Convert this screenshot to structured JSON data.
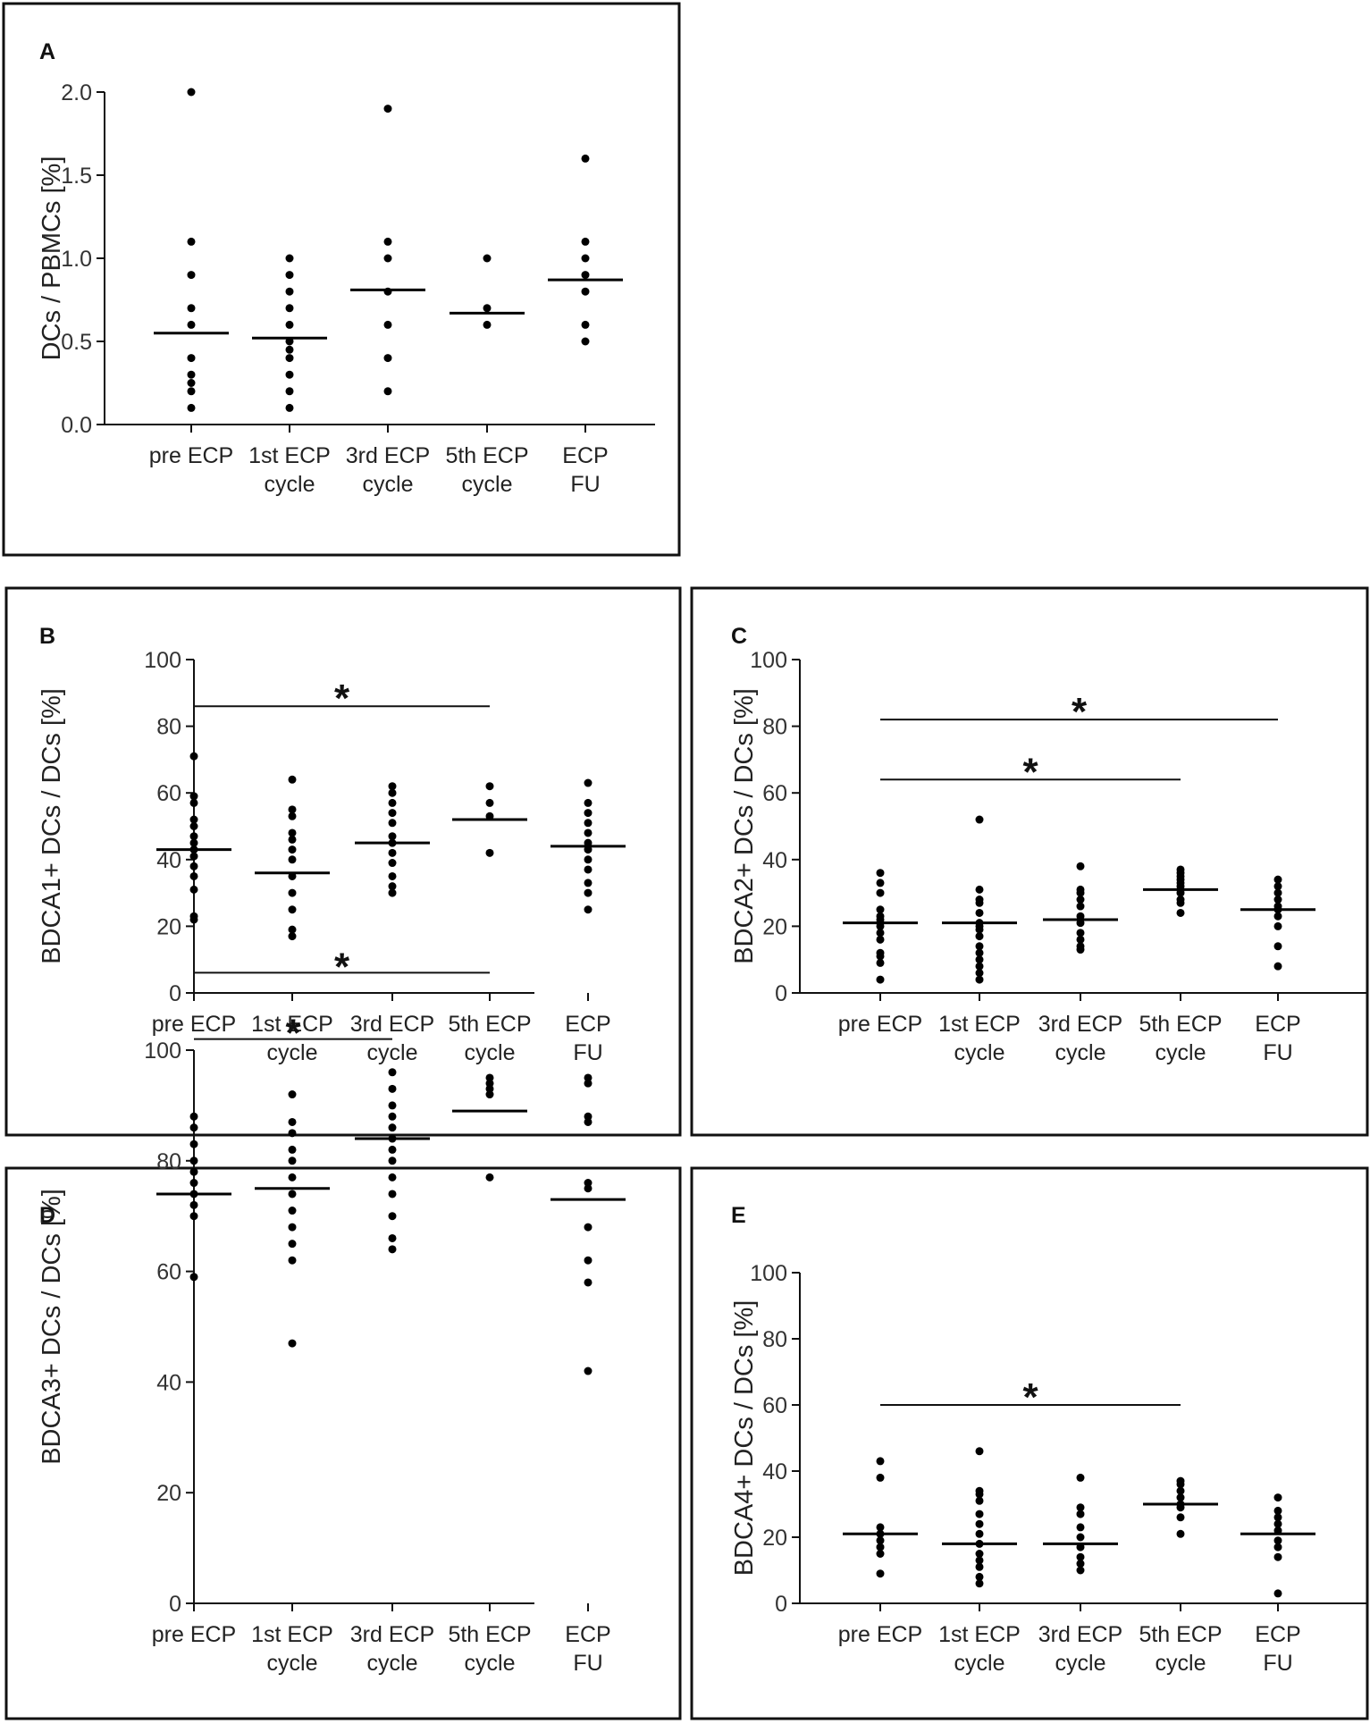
{
  "figure": {
    "categories": [
      [
        "pre ECP"
      ],
      [
        "1st ECP",
        "cycle"
      ],
      [
        "3rd ECP",
        "cycle"
      ],
      [
        "5th ECP",
        "cycle"
      ],
      [
        "ECP",
        "FU"
      ]
    ]
  },
  "chart_data": [
    {
      "panel": "A",
      "type": "scatter",
      "ylabel": "DCs / PBMCs [%]",
      "ylim": [
        0,
        2.0
      ],
      "yticks": [
        "0.0",
        "0.5",
        "1.0",
        "1.5",
        "2.0"
      ],
      "categories": [
        "pre ECP",
        "1st ECP cycle",
        "3rd ECP cycle",
        "5th ECP cycle",
        "ECP FU"
      ],
      "points": [
        [
          2.0,
          1.1,
          0.9,
          0.7,
          0.6,
          0.4,
          0.3,
          0.25,
          0.2,
          0.1
        ],
        [
          1.0,
          0.9,
          0.8,
          0.7,
          0.6,
          0.5,
          0.45,
          0.4,
          0.3,
          0.2,
          0.1
        ],
        [
          1.9,
          1.1,
          1.0,
          0.8,
          0.6,
          0.4,
          0.2
        ],
        [
          1.0,
          0.7,
          0.6
        ],
        [
          1.6,
          1.1,
          1.0,
          0.9,
          0.8,
          0.6,
          0.5
        ]
      ],
      "means": [
        0.55,
        0.52,
        0.81,
        0.67,
        0.87
      ],
      "significance": [],
      "significance_symbol": "*"
    },
    {
      "panel": "B",
      "type": "scatter",
      "ylabel": "BDCA1+ DCs / DCs [%]",
      "ylim": [
        0,
        100
      ],
      "yticks": [
        "0",
        "20",
        "40",
        "60",
        "80",
        "100"
      ],
      "categories": [
        "pre ECP",
        "1st ECP cycle",
        "3rd ECP cycle",
        "5th ECP cycle",
        "ECP FU"
      ],
      "points": [
        [
          71,
          59,
          57,
          52,
          50,
          47,
          45,
          43,
          41,
          38,
          35,
          31,
          23,
          22
        ],
        [
          64,
          55,
          53,
          48,
          46,
          43,
          40,
          35,
          30,
          25,
          19,
          17
        ],
        [
          62,
          60,
          57,
          54,
          51,
          47,
          45,
          42,
          39,
          35,
          32,
          30
        ],
        [
          62,
          57,
          53,
          42
        ],
        [
          63,
          57,
          54,
          51,
          48,
          45,
          43,
          40,
          37,
          33,
          30,
          25
        ]
      ],
      "means": [
        43,
        36,
        45,
        52,
        44
      ],
      "significance": [
        {
          "from": 0,
          "to": 3,
          "y": 86,
          "label": "*"
        }
      ],
      "significance_symbol": "*"
    },
    {
      "panel": "C",
      "type": "scatter",
      "ylabel": "BDCA2+ DCs / DCs [%]",
      "ylim": [
        0,
        100
      ],
      "yticks": [
        "0",
        "20",
        "40",
        "60",
        "80",
        "100"
      ],
      "categories": [
        "pre ECP",
        "1st ECP cycle",
        "3rd ECP cycle",
        "5th ECP cycle",
        "ECP FU"
      ],
      "points": [
        [
          36,
          33,
          30,
          25,
          23,
          22,
          21,
          20,
          18,
          16,
          12,
          11,
          9,
          4
        ],
        [
          52,
          31,
          28,
          27,
          24,
          21,
          20,
          19,
          17,
          14,
          12,
          10,
          8,
          6,
          4
        ],
        [
          38,
          31,
          30,
          28,
          26,
          23,
          21,
          18,
          16,
          14,
          13
        ],
        [
          37,
          36,
          35,
          34,
          33,
          32,
          31,
          30,
          28,
          27,
          24
        ],
        [
          34,
          32,
          30,
          28,
          26,
          25,
          23,
          20,
          14,
          8
        ]
      ],
      "means": [
        21,
        21,
        22,
        31,
        25
      ],
      "significance": [
        {
          "from": 0,
          "to": 4,
          "y": 82,
          "label": "*"
        },
        {
          "from": 0,
          "to": 3,
          "y": 64,
          "label": "*"
        }
      ],
      "significance_symbol": "*"
    },
    {
      "panel": "D",
      "type": "scatter",
      "ylabel": "BDCA3+ DCs / DCs [%]",
      "ylim": [
        0,
        100
      ],
      "yticks": [
        "0",
        "20",
        "40",
        "60",
        "80",
        "100"
      ],
      "categories": [
        "pre ECP",
        "1st ECP cycle",
        "3rd ECP cycle",
        "5th ECP cycle",
        "ECP FU"
      ],
      "points": [
        [
          88,
          86,
          83,
          80,
          78,
          76,
          74,
          72,
          70,
          59
        ],
        [
          92,
          87,
          85,
          82,
          80,
          77,
          74,
          71,
          68,
          65,
          62,
          47
        ],
        [
          96,
          93,
          90,
          88,
          86,
          84,
          82,
          80,
          77,
          74,
          70,
          66,
          64
        ],
        [
          95,
          94,
          93,
          92,
          77
        ],
        [
          95,
          94,
          88,
          87,
          76,
          75,
          68,
          62,
          58,
          42
        ]
      ],
      "means": [
        74,
        75,
        84,
        89,
        73
      ],
      "significance": [
        {
          "from": 0,
          "to": 3,
          "y": 114,
          "label": "*"
        },
        {
          "from": 0,
          "to": 2,
          "y": 102,
          "label": "*"
        }
      ],
      "significance_symbol": "*"
    },
    {
      "panel": "E",
      "type": "scatter",
      "ylabel": "BDCA4+ DCs / DCs [%]",
      "ylim": [
        0,
        100
      ],
      "yticks": [
        "0",
        "20",
        "40",
        "60",
        "80",
        "100"
      ],
      "categories": [
        "pre ECP",
        "1st ECP cycle",
        "3rd ECP cycle",
        "5th ECP cycle",
        "ECP FU"
      ],
      "points": [
        [
          43,
          38,
          23,
          21,
          19,
          17,
          15,
          9
        ],
        [
          46,
          34,
          33,
          31,
          27,
          24,
          21,
          18,
          15,
          13,
          11,
          8,
          6
        ],
        [
          38,
          29,
          27,
          23,
          20,
          17,
          14,
          12,
          10
        ],
        [
          37,
          36,
          34,
          32,
          30,
          29,
          26,
          21
        ],
        [
          32,
          28,
          26,
          24,
          22,
          19,
          17,
          14,
          3
        ]
      ],
      "means": [
        21,
        18,
        18,
        30,
        21
      ],
      "significance": [
        {
          "from": 0,
          "to": 3,
          "y": 60,
          "label": "*"
        }
      ],
      "significance_symbol": "*"
    }
  ]
}
